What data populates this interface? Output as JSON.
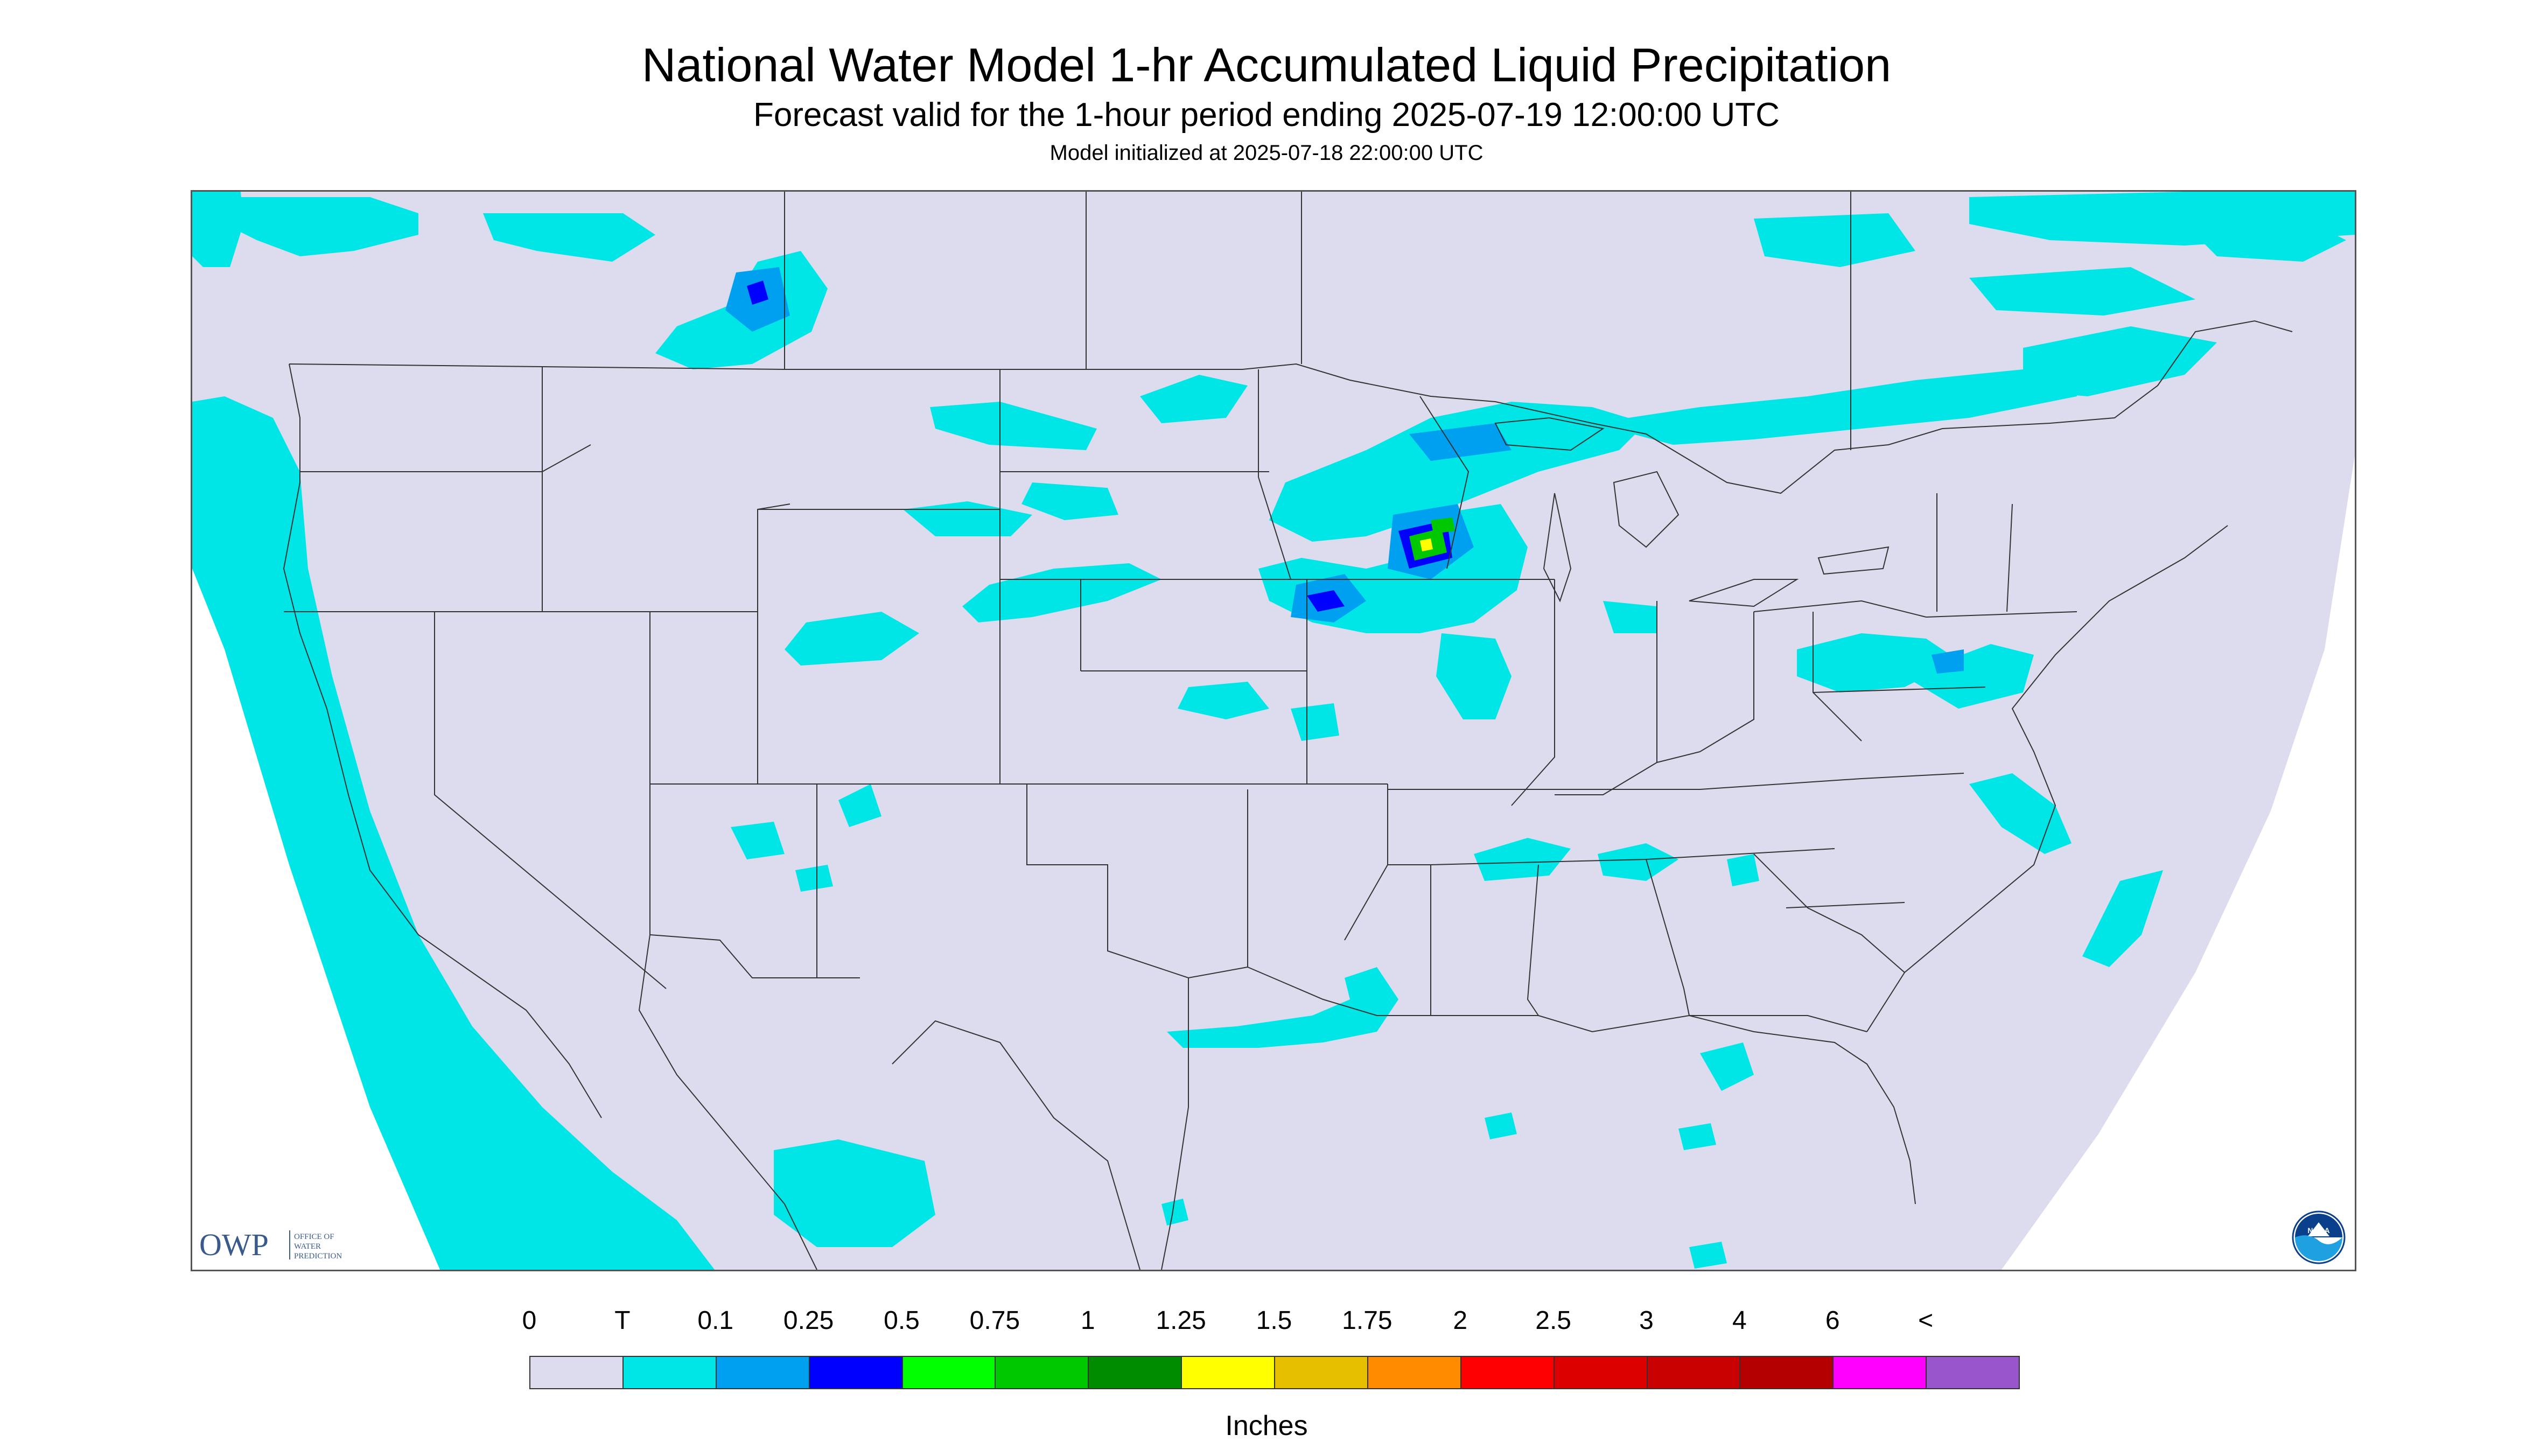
{
  "header": {
    "title": "National Water Model 1-hr Accumulated Liquid Precipitation",
    "subtitle": "Forecast valid for the 1-hour period ending 2025-07-19 12:00:00 UTC",
    "init_line": "Model initialized at 2025-07-18 22:00:00 UTC"
  },
  "logos": {
    "owp_text": "OWP",
    "owp_sub": [
      "OFFICE OF",
      "WATER",
      "PREDICTION"
    ],
    "noaa_text": "NOAA"
  },
  "legend": {
    "ticks": [
      "0",
      "T",
      "0.1",
      "0.25",
      "0.5",
      "0.75",
      "1",
      "1.25",
      "1.5",
      "1.75",
      "2",
      "2.5",
      "3",
      "4",
      "6",
      "<"
    ],
    "colors": [
      "#dcdcee",
      "#00e6e6",
      "#00a0f0",
      "#0000ff",
      "#00ff00",
      "#00c800",
      "#008c00",
      "#ffff00",
      "#e6be00",
      "#ff8c00",
      "#ff0000",
      "#dc0000",
      "#c80000",
      "#b40000",
      "#ff00ff",
      "#9955cc"
    ],
    "units": "Inches"
  },
  "map": {
    "background": "#dcdcee",
    "precip_light": "#00e6e6",
    "precip_medium": "#00a0f0",
    "precip_heavy": "#0000ff",
    "precip_green": "#00c800",
    "precip_yellow": "#ffff00",
    "outside_domain": "#ffffff",
    "border_color": "#333333"
  }
}
